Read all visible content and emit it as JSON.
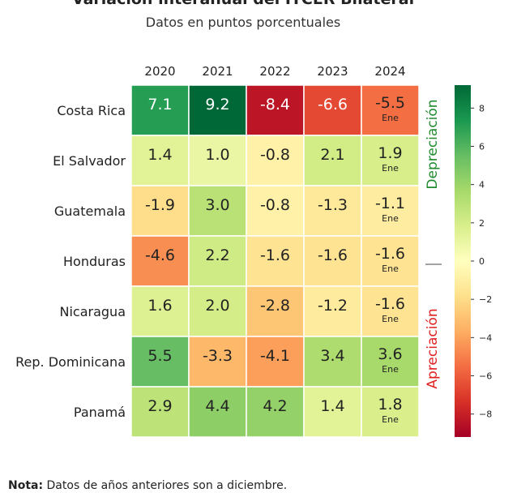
{
  "chart_data": {
    "type": "heatmap",
    "title": "Variación interanual del ITCER Bilateral",
    "subtitle": "Datos en puntos porcentuales",
    "columns": [
      "2020",
      "2021",
      "2022",
      "2023",
      "2024"
    ],
    "rows": [
      "Costa Rica",
      "El Salvador",
      "Guatemala",
      "Honduras",
      "Nicaragua",
      "Rep. Dominicana",
      "Panamá"
    ],
    "values": [
      [
        7.1,
        9.2,
        -8.4,
        -6.6,
        -5.5
      ],
      [
        1.4,
        1.0,
        -0.8,
        2.1,
        1.9
      ],
      [
        -1.9,
        3.0,
        -0.8,
        -1.3,
        -1.1
      ],
      [
        -4.6,
        2.2,
        -1.6,
        -1.6,
        -1.6
      ],
      [
        1.6,
        2.0,
        -2.8,
        -1.2,
        -1.6
      ],
      [
        5.5,
        -3.3,
        -4.1,
        3.4,
        3.6
      ],
      [
        2.9,
        4.4,
        4.2,
        1.4,
        1.8
      ]
    ],
    "cell_labels": [
      [
        "7.1",
        "9.2",
        "-8.4",
        "-6.6",
        "-5.5"
      ],
      [
        "1.4",
        "1.0",
        "-0.8",
        "2.1",
        "1.9"
      ],
      [
        "-1.9",
        "3.0",
        "-0.8",
        "-1.3",
        "-1.1"
      ],
      [
        "-4.6",
        "2.2",
        "-1.6",
        "-1.6",
        "-1.6"
      ],
      [
        "1.6",
        "2.0",
        "-2.8",
        "-1.2",
        "-1.6"
      ],
      [
        "5.5",
        "-3.3",
        "-4.1",
        "3.4",
        "3.6"
      ],
      [
        "2.9",
        "4.4",
        "4.2",
        "1.4",
        "1.8"
      ]
    ],
    "column_note": {
      "column": "2024",
      "text": "Ene"
    },
    "colorbar": {
      "colormap": "RdYlGn",
      "range": [
        -9.2,
        9.2
      ],
      "ticks": [
        8,
        6,
        4,
        2,
        0,
        -2,
        -4,
        -6,
        -8
      ],
      "tick_labels": [
        "8",
        "6",
        "4",
        "2",
        "0",
        "−2",
        "−4",
        "−6",
        "−8"
      ]
    },
    "side_labels": {
      "top": {
        "text": "Depreciación",
        "color": "#1e8b2e"
      },
      "bottom": {
        "text": "Apreciación",
        "color": "#e02020"
      }
    }
  },
  "note": {
    "label": "Nota:",
    "text": "Datos de años anteriores son a diciembre."
  }
}
